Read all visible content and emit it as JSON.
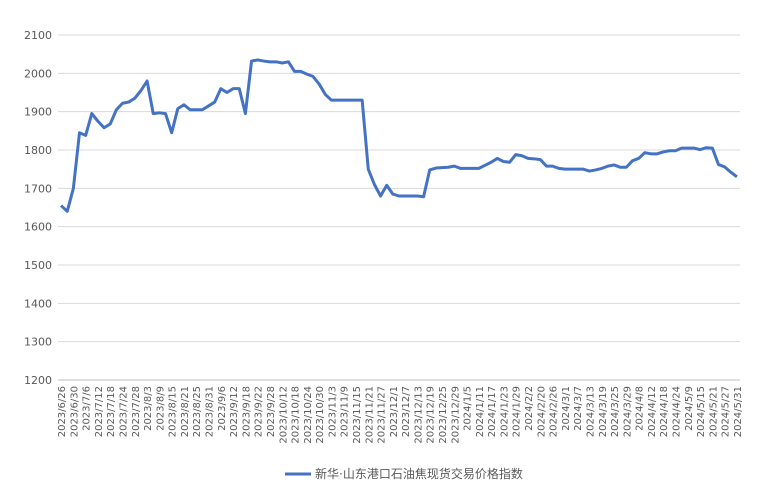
{
  "chart_data": {
    "type": "line",
    "categories": [
      "2023/6/26",
      null,
      "2023/6/30",
      null,
      "2023/7/6",
      null,
      "2023/7/12",
      null,
      "2023/7/18",
      null,
      "2023/7/24",
      null,
      "2023/7/28",
      null,
      "2023/8/3",
      null,
      "2023/8/9",
      null,
      "2023/8/15",
      null,
      "2023/8/21",
      null,
      "2023/8/25",
      null,
      "2023/8/31",
      null,
      "2023/9/6",
      null,
      "2023/9/12",
      null,
      "2023/9/18",
      null,
      "2023/9/22",
      null,
      "2023/9/28",
      null,
      "2023/10/12",
      null,
      "2023/10/18",
      null,
      "2023/10/24",
      null,
      "2023/10/30",
      null,
      "2023/11/3",
      null,
      "2023/11/9",
      null,
      "2023/11/15",
      null,
      "2023/11/21",
      null,
      "2023/11/27",
      null,
      "2023/12/1",
      null,
      "2023/12/7",
      null,
      "2023/12/13",
      null,
      "2023/12/19",
      null,
      "2023/12/25",
      null,
      "2023/12/29",
      null,
      "2024/1/5",
      null,
      "2024/1/11",
      null,
      "2024/1/17",
      null,
      "2024/1/23",
      null,
      "2024/1/29",
      null,
      "2024/2/2",
      null,
      "2024/2/20",
      null,
      "2024/2/26",
      null,
      "2024/3/1",
      null,
      "2024/3/7",
      null,
      "2024/3/13",
      null,
      "2024/3/19",
      null,
      "2024/3/25",
      null,
      "2024/3/29",
      null,
      "2024/4/8",
      null,
      "2024/4/12",
      null,
      "2024/4/18",
      null,
      "2024/4/24",
      null,
      "2024/5/9",
      null,
      "2024/5/15",
      null,
      "2024/5/21",
      null,
      "2024/5/27",
      null,
      "2024/5/31"
    ],
    "series": [
      {
        "name": "新华·山东港口石油焦现货交易价格指数",
        "color": "#4472c4",
        "values": [
          1655,
          1640,
          1700,
          1845,
          1838,
          1895,
          1875,
          1858,
          1868,
          1905,
          1922,
          1925,
          1935,
          1955,
          1980,
          1895,
          1897,
          1895,
          1845,
          1908,
          1918,
          1905,
          1905,
          1905,
          1915,
          1925,
          1960,
          1950,
          1960,
          1960,
          1895,
          2032,
          2035,
          2032,
          2030,
          2030,
          2027,
          2030,
          2005,
          2005,
          1998,
          1992,
          1972,
          1945,
          1930,
          1930,
          1930,
          1930,
          1930,
          1930,
          1750,
          1710,
          1680,
          1708,
          1685,
          1680,
          1680,
          1680,
          1680,
          1678,
          1748,
          1753,
          1754,
          1755,
          1758,
          1752,
          1752,
          1752,
          1752,
          1760,
          1768,
          1778,
          1770,
          1768,
          1788,
          1785,
          1778,
          1777,
          1775,
          1758,
          1758,
          1752,
          1750,
          1750,
          1750,
          1750,
          1745,
          1748,
          1752,
          1758,
          1761,
          1755,
          1755,
          1772,
          1778,
          1793,
          1790,
          1790,
          1795,
          1798,
          1798,
          1805,
          1805,
          1805,
          1801,
          1806,
          1805,
          1762,
          1756,
          1742,
          1730
        ]
      }
    ],
    "ylim": [
      1200,
      2100
    ],
    "yticks": [
      1200,
      1300,
      1400,
      1500,
      1600,
      1700,
      1800,
      1900,
      2000,
      2100
    ],
    "grid": true,
    "legend": "bottom"
  }
}
